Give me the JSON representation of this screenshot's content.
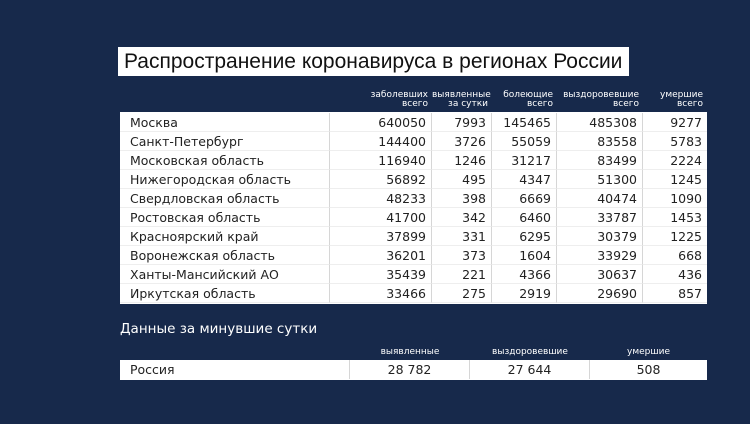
{
  "title": "Распространение коронавируса в регионах России",
  "table": {
    "columns": [
      [
        "заболевших",
        "всего"
      ],
      [
        "выявленные",
        "за сутки"
      ],
      [
        "болеющие",
        "всего"
      ],
      [
        "выздоровевшие",
        "всего"
      ],
      [
        "умершие",
        "всего"
      ]
    ],
    "rows": [
      [
        "Москва",
        640050,
        7993,
        145465,
        485308,
        9277
      ],
      [
        "Санкт-Петербург",
        144400,
        3726,
        55059,
        83558,
        5783
      ],
      [
        "Московская область",
        116940,
        1246,
        31217,
        83499,
        2224
      ],
      [
        "Нижегородская область",
        56892,
        495,
        4347,
        51300,
        1245
      ],
      [
        "Свердловская область",
        48233,
        398,
        6669,
        40474,
        1090
      ],
      [
        "Ростовская область",
        41700,
        342,
        6460,
        33787,
        1453
      ],
      [
        "Красноярский край",
        37899,
        331,
        6295,
        30379,
        1225
      ],
      [
        "Воронежская область",
        36201,
        373,
        1604,
        33929,
        668
      ],
      [
        "Ханты-Мансийский АО",
        35439,
        221,
        4366,
        30637,
        436
      ],
      [
        "Иркутская область",
        33466,
        275,
        2919,
        29690,
        857
      ]
    ]
  },
  "summary": {
    "title": "Данные за минувшие сутки",
    "columns": [
      "выявленные",
      "выздоровевшие",
      "умершие"
    ],
    "rows": [
      [
        "Россия",
        "28 782",
        "27 644",
        508
      ]
    ]
  }
}
